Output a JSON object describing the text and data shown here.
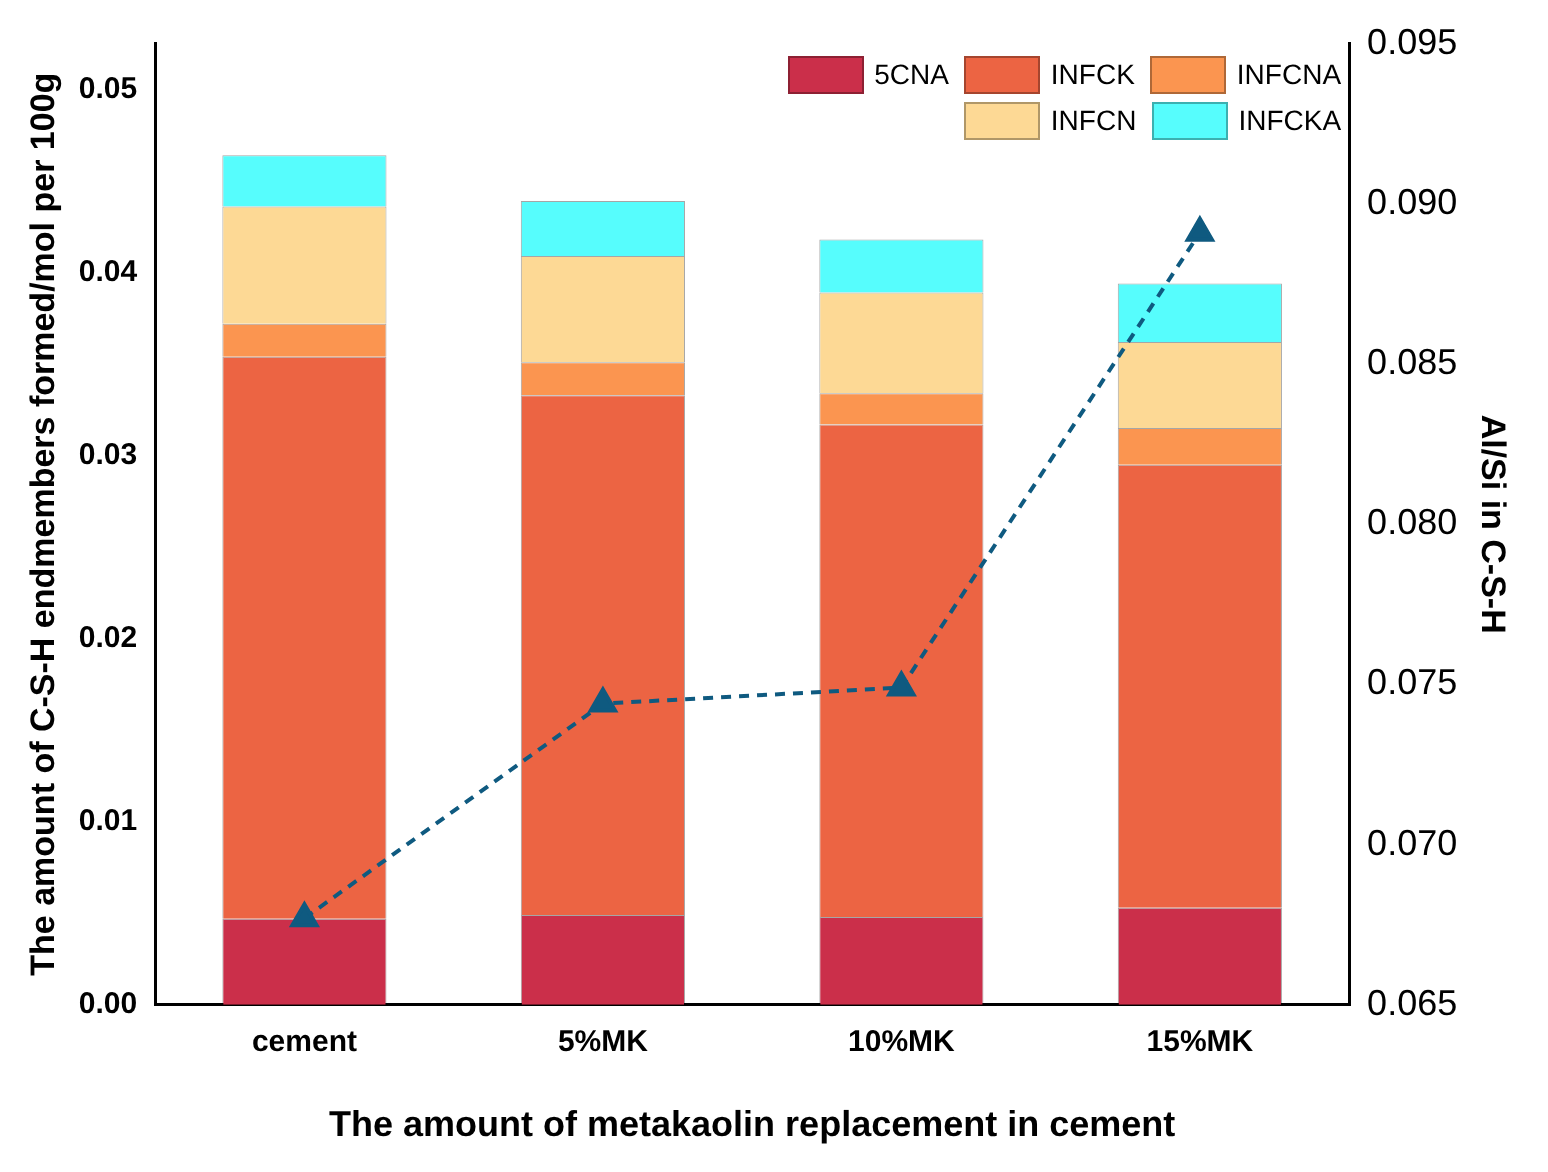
{
  "chart_data": {
    "type": "bar",
    "stacked": true,
    "categories": [
      "cement",
      "5%MK",
      "10%MK",
      "15%MK"
    ],
    "xlabel": "The amount of metakaolin replacement in cement",
    "ylabel": "The amount of C-S-H endmembers formed/mol per 100g",
    "y2label": "Al/Si in C-S-H",
    "ylim": [
      0,
      0.0525
    ],
    "yticks": [
      {
        "value": 0,
        "label": "0.00"
      },
      0.01,
      0.02,
      0.03,
      0.04,
      0.05
    ],
    "y2lim": [
      0.065,
      0.095
    ],
    "y2ticks": [
      0.065,
      {
        "value": 0.07,
        "label": "0.070"
      },
      0.075,
      {
        "value": 0.08,
        "label": "0.080"
      },
      0.085,
      {
        "value": 0.09,
        "label": "0.090"
      },
      0.095
    ],
    "legend": "top right",
    "grid": false,
    "series": [
      {
        "name": "5CNA",
        "color": "#cb2f4a",
        "values": [
          0.0047,
          0.0049,
          0.0048,
          0.0053
        ]
      },
      {
        "name": "INFCK",
        "color": "#ec6443",
        "values": [
          0.0307,
          0.0284,
          0.0269,
          0.0242
        ]
      },
      {
        "name": "INFCNA",
        "color": "#fb9550",
        "values": [
          0.0018,
          0.0018,
          0.0017,
          0.002
        ]
      },
      {
        "name": "INFCN",
        "color": "#fdd995",
        "values": [
          0.0064,
          0.0058,
          0.0055,
          0.0047
        ]
      },
      {
        "name": "INFCKA",
        "color": "#56fdfd",
        "values": [
          0.0028,
          0.003,
          0.0029,
          0.0032
        ]
      },
      {
        "type": "line",
        "axis": "y2",
        "color": "#0f5a80",
        "marker": "triangle",
        "line_style": "dashed",
        "values": [
          0.0677,
          0.0744,
          0.0749,
          0.0891
        ]
      }
    ]
  }
}
